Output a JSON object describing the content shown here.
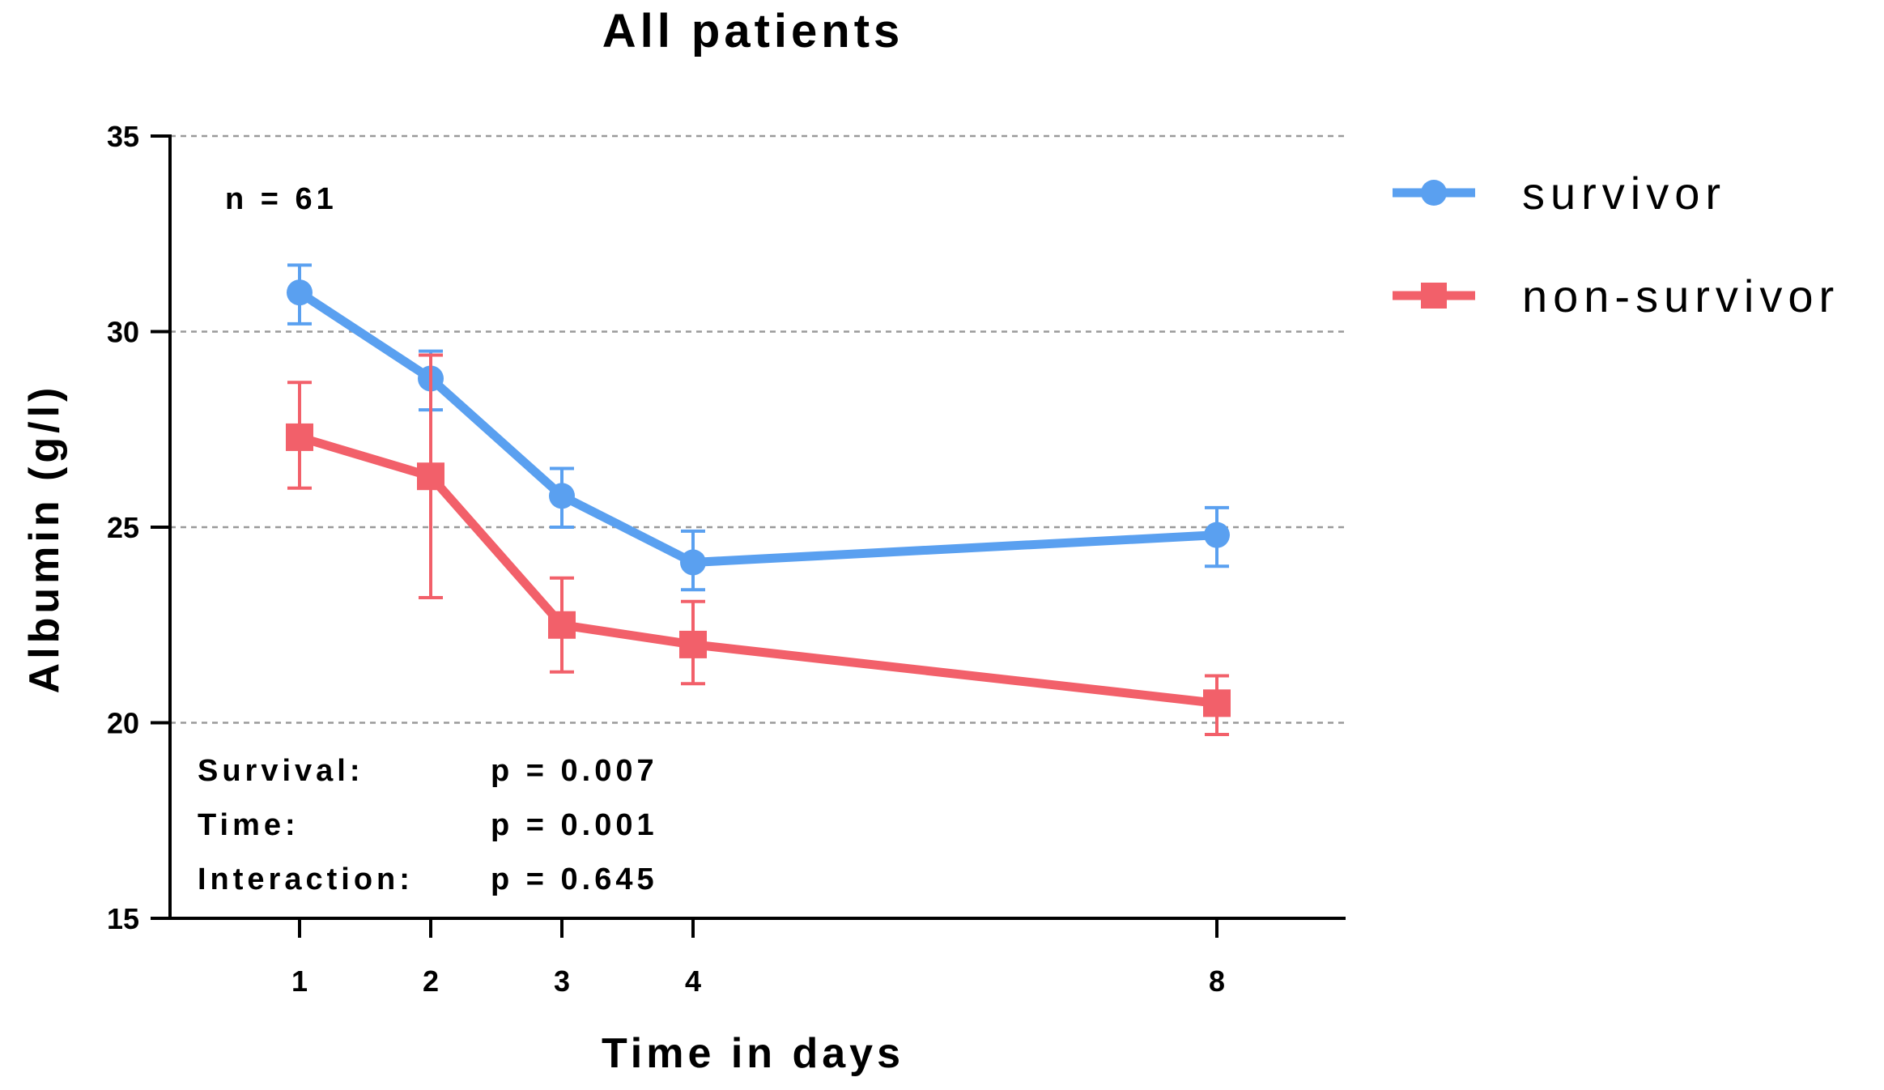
{
  "chart_data": {
    "type": "line",
    "title": "All patients",
    "xlabel": "Time in days",
    "ylabel": "Albumin (g/l)",
    "ylim": [
      15,
      35
    ],
    "yticks": [
      15,
      20,
      25,
      30,
      35
    ],
    "x": [
      1,
      2,
      3,
      4,
      8
    ],
    "x_tick_labels": [
      "1",
      "2",
      "3",
      "4",
      "8"
    ],
    "grid": "horizontal dashed",
    "legend_position": "top-right outside",
    "series": [
      {
        "name": "survivor",
        "color": "#5aa0f0",
        "marker": "circle",
        "values": [
          31.0,
          28.8,
          25.8,
          24.1,
          24.8
        ],
        "error_low": [
          30.2,
          28.0,
          25.0,
          23.4,
          24.0
        ],
        "error_high": [
          31.7,
          29.5,
          26.5,
          24.9,
          25.5
        ]
      },
      {
        "name": "non-survivor",
        "color": "#f2606a",
        "marker": "square",
        "values": [
          27.3,
          26.3,
          22.5,
          22.0,
          20.5
        ],
        "error_low": [
          26.0,
          23.2,
          21.3,
          21.0,
          19.7
        ],
        "error_high": [
          28.7,
          29.4,
          23.7,
          23.1,
          21.2
        ]
      }
    ],
    "annotations": {
      "n": "n = 61",
      "stats": [
        {
          "label": "Survival:",
          "value": "p = 0.007"
        },
        {
          "label": "Time:",
          "value": "p = 0.001"
        },
        {
          "label": "Interaction:",
          "value": "p = 0.645"
        }
      ]
    }
  }
}
